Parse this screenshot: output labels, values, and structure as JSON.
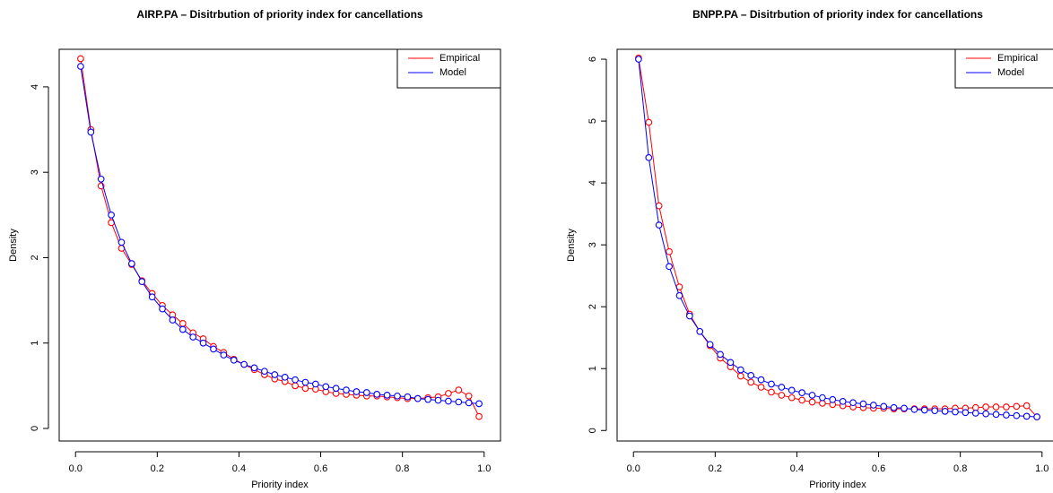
{
  "chart_data": [
    {
      "type": "line",
      "title": "AIRP.PA  – Disitrbution of priority index for cancellations",
      "x_label": "Priority index",
      "y_label": "Density",
      "x": [
        0.0125,
        0.0375,
        0.0625,
        0.0875,
        0.1125,
        0.1375,
        0.1625,
        0.1875,
        0.2125,
        0.2375,
        0.2625,
        0.2875,
        0.3125,
        0.3375,
        0.3625,
        0.3875,
        0.4125,
        0.4375,
        0.4625,
        0.4875,
        0.5125,
        0.5375,
        0.5625,
        0.5875,
        0.6125,
        0.6375,
        0.6625,
        0.6875,
        0.7125,
        0.7375,
        0.7625,
        0.7875,
        0.8125,
        0.8375,
        0.8625,
        0.8875,
        0.9125,
        0.9375,
        0.9625,
        0.9875
      ],
      "series": [
        {
          "name": "Empirical",
          "color": "#ff0000",
          "values": [
            4.33,
            3.5,
            2.84,
            2.41,
            2.11,
            1.92,
            1.73,
            1.58,
            1.44,
            1.33,
            1.23,
            1.12,
            1.05,
            0.96,
            0.89,
            0.81,
            0.75,
            0.69,
            0.63,
            0.58,
            0.55,
            0.5,
            0.47,
            0.46,
            0.43,
            0.41,
            0.4,
            0.39,
            0.38,
            0.38,
            0.37,
            0.36,
            0.35,
            0.35,
            0.36,
            0.37,
            0.41,
            0.45,
            0.38,
            0.14
          ]
        },
        {
          "name": "Model",
          "color": "#0000ff",
          "values": [
            4.24,
            3.47,
            2.92,
            2.5,
            2.18,
            1.93,
            1.72,
            1.54,
            1.4,
            1.27,
            1.16,
            1.07,
            1.0,
            0.93,
            0.86,
            0.8,
            0.75,
            0.71,
            0.67,
            0.63,
            0.6,
            0.57,
            0.54,
            0.52,
            0.49,
            0.47,
            0.45,
            0.43,
            0.42,
            0.4,
            0.39,
            0.38,
            0.37,
            0.35,
            0.34,
            0.33,
            0.32,
            0.31,
            0.3,
            0.29
          ]
        }
      ],
      "xlim": [
        -0.04,
        1.04
      ],
      "ylim": [
        -0.147,
        4.44
      ],
      "xticks": [
        {
          "value": 0,
          "label": "0.0"
        },
        0.2,
        0.4,
        0.6,
        0.8,
        {
          "value": 1,
          "label": "1.0"
        }
      ],
      "yticks": [
        0,
        1,
        2,
        3,
        4
      ],
      "legend": "topright"
    },
    {
      "type": "line",
      "title": "BNPP.PA  – Disitrbution of priority index for cancellations",
      "x_label": "Priority index",
      "y_label": "Density",
      "x": [
        0.0125,
        0.0375,
        0.0625,
        0.0875,
        0.1125,
        0.1375,
        0.1625,
        0.1875,
        0.2125,
        0.2375,
        0.2625,
        0.2875,
        0.3125,
        0.3375,
        0.3625,
        0.3875,
        0.4125,
        0.4375,
        0.4625,
        0.4875,
        0.5125,
        0.5375,
        0.5625,
        0.5875,
        0.6125,
        0.6375,
        0.6625,
        0.6875,
        0.7125,
        0.7375,
        0.7625,
        0.7875,
        0.8125,
        0.8375,
        0.8625,
        0.8875,
        0.9125,
        0.9375,
        0.9625,
        0.9875
      ],
      "series": [
        {
          "name": "Empirical",
          "color": "#ff0000",
          "values": [
            6.02,
            4.98,
            3.63,
            2.89,
            2.32,
            1.88,
            1.6,
            1.37,
            1.17,
            1.03,
            0.88,
            0.78,
            0.7,
            0.62,
            0.57,
            0.53,
            0.49,
            0.46,
            0.44,
            0.42,
            0.4,
            0.38,
            0.37,
            0.36,
            0.36,
            0.35,
            0.35,
            0.35,
            0.35,
            0.35,
            0.35,
            0.36,
            0.36,
            0.37,
            0.38,
            0.38,
            0.38,
            0.39,
            0.4,
            0.22
          ]
        },
        {
          "name": "Model",
          "color": "#0000ff",
          "values": [
            6.0,
            4.41,
            3.32,
            2.65,
            2.18,
            1.85,
            1.6,
            1.39,
            1.23,
            1.1,
            0.98,
            0.89,
            0.82,
            0.75,
            0.7,
            0.65,
            0.61,
            0.57,
            0.53,
            0.5,
            0.47,
            0.45,
            0.43,
            0.41,
            0.39,
            0.37,
            0.36,
            0.34,
            0.33,
            0.32,
            0.31,
            0.3,
            0.29,
            0.28,
            0.27,
            0.26,
            0.25,
            0.24,
            0.23,
            0.22
          ]
        }
      ],
      "xlim": [
        -0.04,
        1.04
      ],
      "ylim": [
        -0.17,
        6.16
      ],
      "xticks": [
        {
          "value": 0,
          "label": "0.0"
        },
        0.2,
        0.4,
        0.6,
        0.8,
        {
          "value": 1,
          "label": "1.0"
        }
      ],
      "yticks": [
        0,
        1,
        2,
        3,
        4,
        5,
        6
      ],
      "legend": "topright"
    }
  ]
}
